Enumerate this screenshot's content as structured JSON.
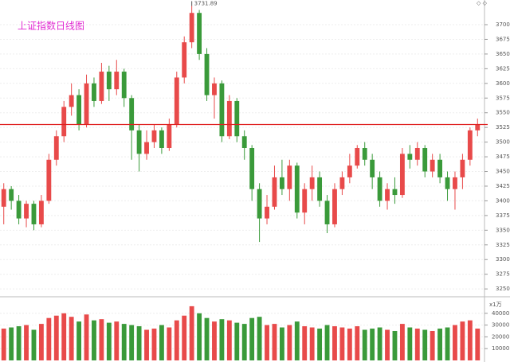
{
  "chart_data": {
    "type": "candlestick",
    "title": "上证指数日线图",
    "annotation": {
      "label": "3731.89",
      "value": 3731.89,
      "index": 25
    },
    "reference_line": 3530,
    "up_color": "#e84a4a",
    "down_color": "#3a9a3a",
    "reference_color": "#e02020",
    "grid": true,
    "ylim": [
      3238,
      3742
    ],
    "yticks": [
      3250,
      3275,
      3300,
      3325,
      3350,
      3375,
      3400,
      3425,
      3450,
      3475,
      3500,
      3525,
      3550,
      3575,
      3600,
      3625,
      3650,
      3675,
      3700
    ],
    "open": [
      3390,
      3420,
      3400,
      3370,
      3395,
      3360,
      3400,
      3470,
      3510,
      3560,
      3580,
      3530,
      3600,
      3570,
      3620,
      3590,
      3620,
      3575,
      3520,
      3480,
      3500,
      3520,
      3490,
      3530,
      3610,
      3670,
      3720,
      3650,
      3580,
      3600,
      3510,
      3570,
      3510,
      3490,
      3420,
      3370,
      3390,
      3440,
      3420,
      3460,
      3380,
      3420,
      3440,
      3400,
      3360,
      3420,
      3440,
      3460,
      3490,
      3470,
      3440,
      3400,
      3420,
      3410,
      3480,
      3470,
      3490,
      3450,
      3470,
      3440,
      3420,
      3440,
      3470,
      3520
    ],
    "high": [
      3430,
      3425,
      3410,
      3400,
      3400,
      3410,
      3480,
      3520,
      3570,
      3600,
      3590,
      3615,
      3610,
      3635,
      3630,
      3640,
      3625,
      3580,
      3530,
      3520,
      3530,
      3525,
      3540,
      3620,
      3680,
      3731.89,
      3725,
      3660,
      3610,
      3605,
      3580,
      3575,
      3520,
      3495,
      3430,
      3410,
      3460,
      3470,
      3470,
      3465,
      3430,
      3460,
      3450,
      3410,
      3430,
      3450,
      3480,
      3495,
      3500,
      3480,
      3450,
      3430,
      3440,
      3490,
      3495,
      3500,
      3495,
      3480,
      3480,
      3450,
      3450,
      3480,
      3525,
      3540
    ],
    "low": [
      3360,
      3385,
      3360,
      3355,
      3350,
      3355,
      3395,
      3460,
      3500,
      3545,
      3520,
      3525,
      3560,
      3565,
      3570,
      3580,
      3560,
      3470,
      3450,
      3470,
      3490,
      3480,
      3485,
      3525,
      3600,
      3660,
      3640,
      3570,
      3540,
      3500,
      3505,
      3500,
      3470,
      3400,
      3330,
      3360,
      3385,
      3410,
      3400,
      3370,
      3360,
      3400,
      3390,
      3345,
      3355,
      3410,
      3430,
      3455,
      3460,
      3420,
      3390,
      3385,
      3395,
      3405,
      3455,
      3460,
      3440,
      3440,
      3430,
      3400,
      3385,
      3420,
      3460,
      3510
    ],
    "close": [
      3420,
      3400,
      3370,
      3395,
      3360,
      3400,
      3470,
      3510,
      3560,
      3580,
      3530,
      3600,
      3570,
      3620,
      3590,
      3620,
      3575,
      3520,
      3480,
      3500,
      3520,
      3490,
      3530,
      3610,
      3670,
      3720,
      3650,
      3580,
      3600,
      3510,
      3570,
      3510,
      3490,
      3420,
      3370,
      3390,
      3440,
      3420,
      3460,
      3380,
      3420,
      3440,
      3400,
      3360,
      3420,
      3440,
      3460,
      3490,
      3470,
      3440,
      3400,
      3420,
      3410,
      3480,
      3470,
      3490,
      3450,
      3470,
      3440,
      3420,
      3440,
      3470,
      3520,
      3530
    ],
    "volume_unit": "x1万",
    "volume_ylim": [
      0,
      52000
    ],
    "volume_yticks": [
      10000,
      20000,
      30000,
      40000
    ],
    "volume": [
      27000,
      28000,
      29000,
      30000,
      26000,
      31000,
      36000,
      38000,
      40000,
      37000,
      33000,
      39000,
      34000,
      35000,
      32000,
      33000,
      31000,
      30000,
      29000,
      26000,
      27000,
      30000,
      28000,
      34000,
      38000,
      46000,
      40000,
      36000,
      33000,
      35000,
      34000,
      32000,
      31000,
      36000,
      37000,
      30000,
      31000,
      28000,
      30000,
      33000,
      29000,
      28000,
      27000,
      30000,
      29000,
      28000,
      27000,
      29000,
      26000,
      27000,
      28000,
      26000,
      25000,
      31000,
      28000,
      27000,
      26000,
      25000,
      27000,
      28000,
      30000,
      33000,
      34000,
      27000
    ]
  }
}
